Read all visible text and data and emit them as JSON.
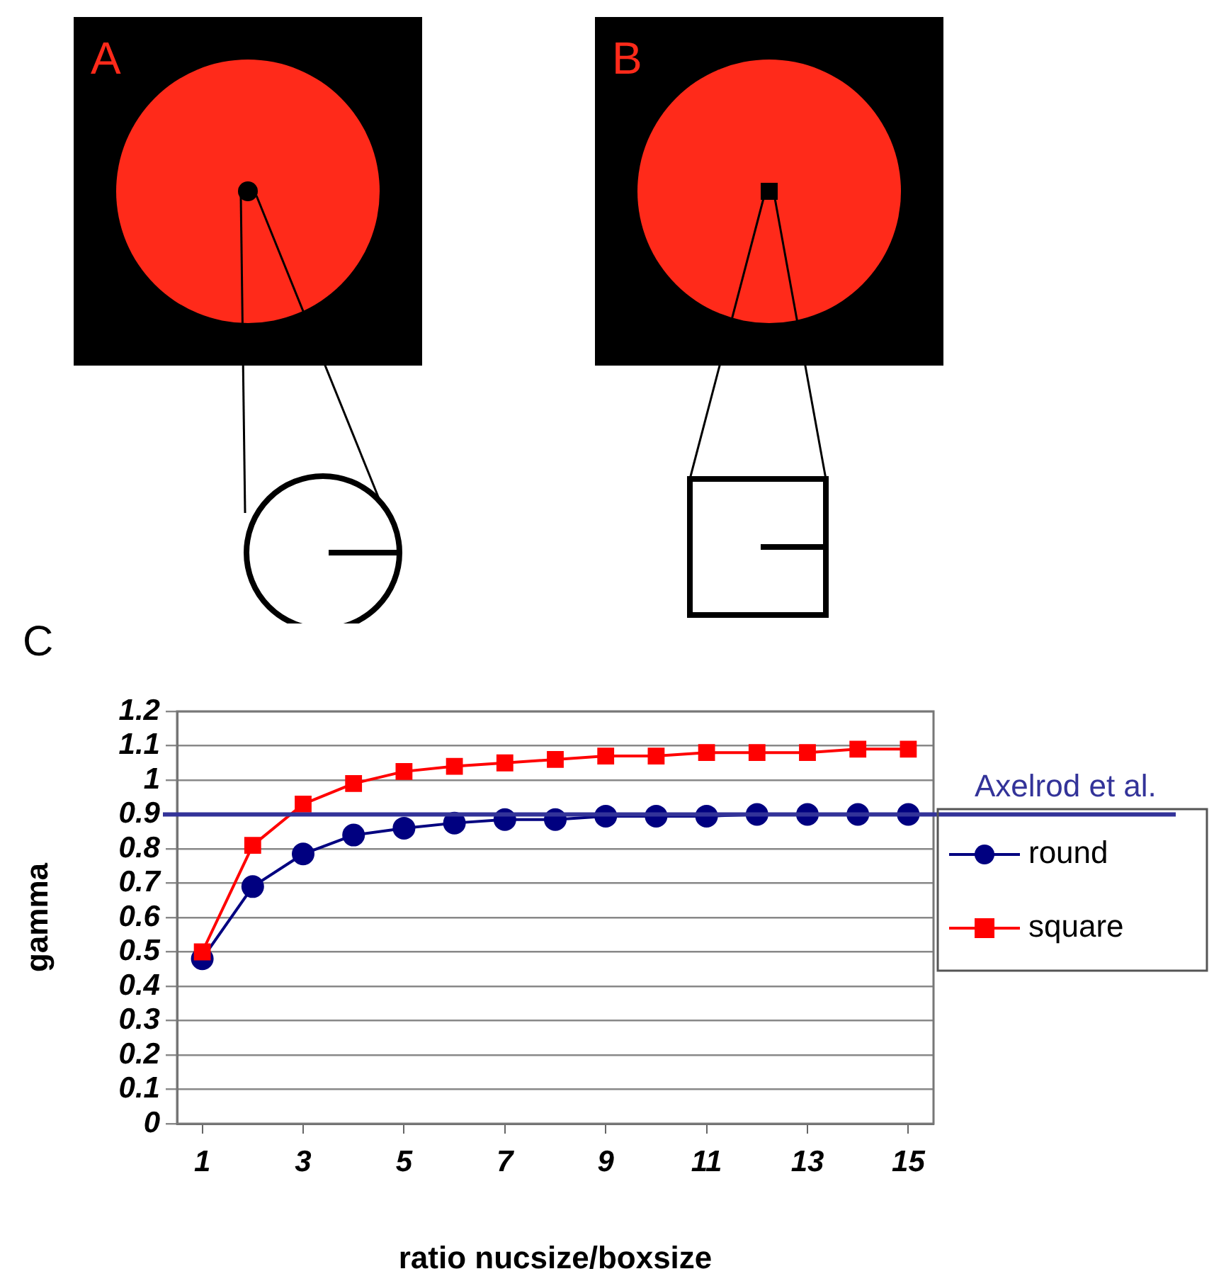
{
  "chart_data": {
    "type": "line",
    "title": "C",
    "xlabel": "ratio nucsize/boxsize",
    "ylabel": "gamma",
    "x": [
      1,
      2,
      3,
      4,
      5,
      6,
      7,
      8,
      9,
      10,
      11,
      12,
      13,
      14,
      15
    ],
    "xlim": [
      0.5,
      15.5
    ],
    "xticks": [
      1,
      3,
      5,
      7,
      9,
      11,
      13,
      15
    ],
    "series": [
      {
        "name": "round",
        "color": "#000080",
        "marker": "circle",
        "values": [
          0.48,
          0.69,
          0.785,
          0.84,
          0.86,
          0.875,
          0.885,
          0.885,
          0.895,
          0.895,
          0.895,
          0.9,
          0.9,
          0.9,
          0.9
        ]
      },
      {
        "name": "square",
        "color": "#ff0000",
        "marker": "square",
        "values": [
          0.5,
          0.81,
          0.93,
          0.99,
          1.025,
          1.04,
          1.05,
          1.06,
          1.07,
          1.07,
          1.08,
          1.08,
          1.08,
          1.09,
          1.09
        ]
      }
    ],
    "ylim": [
      0,
      1.2
    ],
    "yticks": [
      0,
      0.1,
      0.2,
      0.3,
      0.4,
      0.5,
      0.6,
      0.7,
      0.8,
      0.9,
      1,
      1.1,
      1.2
    ],
    "grid": "y",
    "legend": "right",
    "line_style": "solid",
    "ref_lines": [
      {
        "axis": "y",
        "value": 0.9,
        "label": "Axelrod et al.",
        "color": "#333399"
      }
    ],
    "annotations": [
      "A",
      "B"
    ]
  }
}
